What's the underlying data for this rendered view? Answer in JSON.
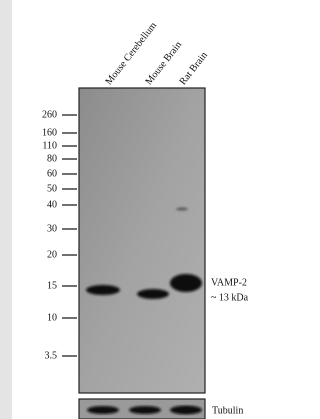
{
  "lanes": [
    "Mouse Cerebellum",
    "Mouse Brain",
    "Rat Brain"
  ],
  "markers": [
    "260",
    "160",
    "110",
    "80",
    "60",
    "50",
    "40",
    "30",
    "20",
    "15",
    "10",
    "3.5"
  ],
  "band": {
    "name": "VAMP-2",
    "size": "~ 13 kDa"
  },
  "loading_control": "Tubulin"
}
